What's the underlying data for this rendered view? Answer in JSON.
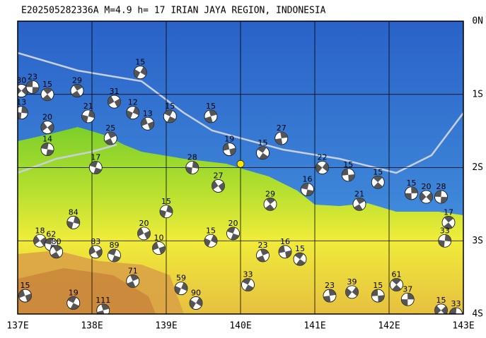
{
  "title": "E202505282336A M=4.9 h= 17 IRIAN JAYA REGION, INDONESIA",
  "map": {
    "lonlim": [
      137,
      143
    ],
    "latlim": [
      0,
      -4
    ],
    "lonticks": [
      {
        "value": 137,
        "label": "137E"
      },
      {
        "value": 138,
        "label": "138E"
      },
      {
        "value": 139,
        "label": "139E"
      },
      {
        "value": 140,
        "label": "140E"
      },
      {
        "value": 141,
        "label": "141E"
      },
      {
        "value": 142,
        "label": "142E"
      },
      {
        "value": 143,
        "label": "143E"
      }
    ],
    "latticks": [
      {
        "value": 0,
        "label": "0N"
      },
      {
        "value": -1,
        "label": "1S"
      },
      {
        "value": -2,
        "label": "2S"
      },
      {
        "value": -3,
        "label": "3S"
      },
      {
        "value": -4,
        "label": "4S"
      }
    ],
    "grid": true,
    "epicenter": {
      "lon": 140.0,
      "lat": -1.95,
      "color": "#ffe600"
    },
    "events": [
      {
        "lon": 137.05,
        "lat": -0.95,
        "depth": 30
      },
      {
        "lon": 137.2,
        "lat": -0.9,
        "depth": 23
      },
      {
        "lon": 137.4,
        "lat": -1.0,
        "depth": 15
      },
      {
        "lon": 137.05,
        "lat": -1.25,
        "depth": 13
      },
      {
        "lon": 137.4,
        "lat": -1.45,
        "depth": 20
      },
      {
        "lon": 137.4,
        "lat": -1.75,
        "depth": 14
      },
      {
        "lon": 137.8,
        "lat": -0.95,
        "depth": 29
      },
      {
        "lon": 137.95,
        "lat": -1.3,
        "depth": 21
      },
      {
        "lon": 138.3,
        "lat": -1.1,
        "depth": 31
      },
      {
        "lon": 138.05,
        "lat": -2.0,
        "depth": 17
      },
      {
        "lon": 138.25,
        "lat": -1.6,
        "depth": 25
      },
      {
        "lon": 138.55,
        "lat": -1.25,
        "depth": 12
      },
      {
        "lon": 138.75,
        "lat": -1.4,
        "depth": 13
      },
      {
        "lon": 139.05,
        "lat": -1.3,
        "depth": 15
      },
      {
        "lon": 139.6,
        "lat": -1.3,
        "depth": 15
      },
      {
        "lon": 138.65,
        "lat": -0.7,
        "depth": 15
      },
      {
        "lon": 139.85,
        "lat": -1.75,
        "depth": 19
      },
      {
        "lon": 140.3,
        "lat": -1.8,
        "depth": 15
      },
      {
        "lon": 140.55,
        "lat": -1.6,
        "depth": 27
      },
      {
        "lon": 141.1,
        "lat": -2.0,
        "depth": 22
      },
      {
        "lon": 141.45,
        "lat": -2.1,
        "depth": 15
      },
      {
        "lon": 141.85,
        "lat": -2.2,
        "depth": 15
      },
      {
        "lon": 142.3,
        "lat": -2.35,
        "depth": 15
      },
      {
        "lon": 142.5,
        "lat": -2.4,
        "depth": 20
      },
      {
        "lon": 142.7,
        "lat": -2.4,
        "depth": 28
      },
      {
        "lon": 142.8,
        "lat": -2.75,
        "depth": 17
      },
      {
        "lon": 142.75,
        "lat": -3.0,
        "depth": 33
      },
      {
        "lon": 137.3,
        "lat": -3.0,
        "depth": 18
      },
      {
        "lon": 137.45,
        "lat": -3.05,
        "depth": 62
      },
      {
        "lon": 137.52,
        "lat": -3.15,
        "depth": 80
      },
      {
        "lon": 137.75,
        "lat": -2.75,
        "depth": 84
      },
      {
        "lon": 138.05,
        "lat": -3.15,
        "depth": 83
      },
      {
        "lon": 138.3,
        "lat": -3.2,
        "depth": 89
      },
      {
        "lon": 138.55,
        "lat": -3.55,
        "depth": 71
      },
      {
        "lon": 139.2,
        "lat": -3.65,
        "depth": 59
      },
      {
        "lon": 137.1,
        "lat": -3.75,
        "depth": 15
      },
      {
        "lon": 137.75,
        "lat": -3.85,
        "depth": 19
      },
      {
        "lon": 138.15,
        "lat": -3.95,
        "depth": 111
      },
      {
        "lon": 139.4,
        "lat": -3.85,
        "depth": 90
      },
      {
        "lon": 140.6,
        "lat": -3.15,
        "depth": 16
      },
      {
        "lon": 140.8,
        "lat": -3.25,
        "depth": 15
      },
      {
        "lon": 141.2,
        "lat": -3.75,
        "depth": 23
      },
      {
        "lon": 141.5,
        "lat": -3.7,
        "depth": 39
      },
      {
        "lon": 141.85,
        "lat": -3.75,
        "depth": 15
      },
      {
        "lon": 142.1,
        "lat": -3.6,
        "depth": 61
      },
      {
        "lon": 142.25,
        "lat": -3.8,
        "depth": 37
      },
      {
        "lon": 142.7,
        "lat": -3.95,
        "depth": 15
      },
      {
        "lon": 142.9,
        "lat": -4.0,
        "depth": 33
      },
      {
        "lon": 140.4,
        "lat": -2.5,
        "depth": 29
      },
      {
        "lon": 139.35,
        "lat": -2.0,
        "depth": 28
      },
      {
        "lon": 139.7,
        "lat": -2.25,
        "depth": 27
      },
      {
        "lon": 140.9,
        "lat": -2.3,
        "depth": 16
      },
      {
        "lon": 141.6,
        "lat": -2.5,
        "depth": 21
      },
      {
        "lon": 139.0,
        "lat": -2.6,
        "depth": 15
      },
      {
        "lon": 138.7,
        "lat": -2.9,
        "depth": 20
      },
      {
        "lon": 139.9,
        "lat": -2.9,
        "depth": 20
      },
      {
        "lon": 140.3,
        "lat": -3.2,
        "depth": 23
      },
      {
        "lon": 139.6,
        "lat": -3.0,
        "depth": 15
      },
      {
        "lon": 138.9,
        "lat": -3.1,
        "depth": 10
      },
      {
        "lon": 140.1,
        "lat": -3.6,
        "depth": 33
      }
    ]
  }
}
